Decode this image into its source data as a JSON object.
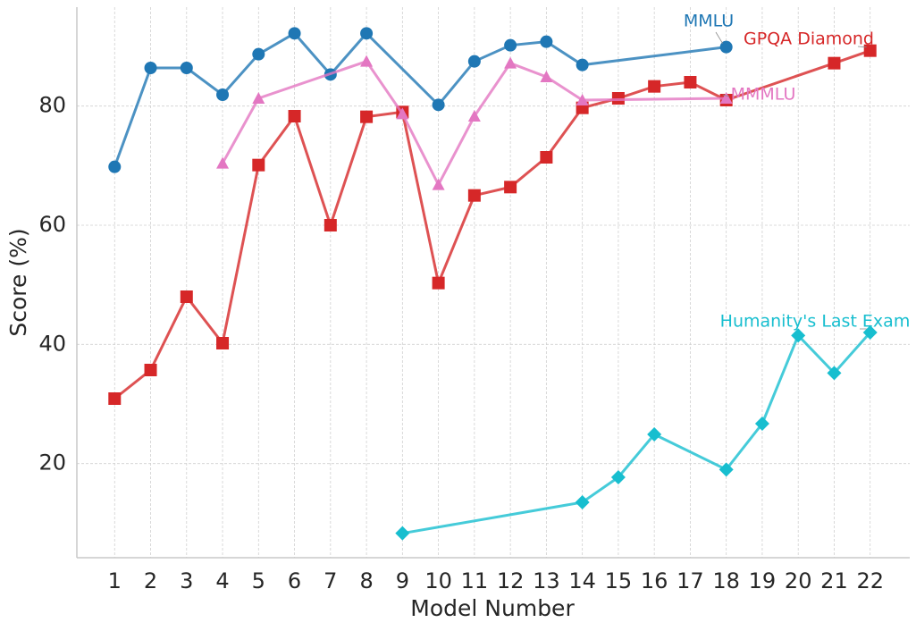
{
  "chart_data": {
    "type": "line",
    "xlabel": "Model Number",
    "ylabel": "Score (%)",
    "xlim": [
      -0.05,
      23.1
    ],
    "ylim": [
      4.2,
      96.6
    ],
    "xticks": [
      1,
      2,
      3,
      4,
      5,
      6,
      7,
      8,
      9,
      10,
      11,
      12,
      13,
      14,
      15,
      16,
      17,
      18,
      19,
      20,
      21,
      22
    ],
    "yticks": [
      20,
      40,
      60,
      80
    ],
    "grid": true,
    "series": [
      {
        "name": "MMLU",
        "color": "#1f77b4",
        "marker": "circle",
        "x": [
          1,
          2,
          3,
          4,
          5,
          6,
          7,
          8,
          10,
          11,
          12,
          13,
          14,
          18
        ],
        "values": [
          69.8,
          86.4,
          86.4,
          81.9,
          88.7,
          92.2,
          85.3,
          92.2,
          80.2,
          87.5,
          90.2,
          90.8,
          86.9,
          89.9
        ]
      },
      {
        "name": "GPQA Diamond",
        "color": "#d62728",
        "marker": "square",
        "x": [
          1,
          2,
          3,
          4,
          5,
          6,
          7,
          8,
          9,
          10,
          11,
          12,
          13,
          14,
          15,
          16,
          17,
          18,
          21,
          22
        ],
        "values": [
          30.9,
          35.7,
          48.0,
          40.2,
          70.1,
          78.3,
          60.0,
          78.2,
          79.0,
          50.3,
          65.0,
          66.4,
          71.4,
          79.7,
          81.3,
          83.3,
          84.0,
          81.0,
          87.2,
          89.3
        ]
      },
      {
        "name": "MMMLU",
        "color": "#e377c2",
        "marker": "triangle",
        "x": [
          4,
          5,
          8,
          9,
          10,
          11,
          12,
          13,
          14,
          18
        ],
        "values": [
          70.4,
          81.3,
          87.5,
          78.7,
          66.8,
          78.3,
          87.2,
          84.9,
          81.0,
          81.3
        ]
      },
      {
        "name": "Humanity's Last Exam",
        "color": "#17becf",
        "marker": "diamond",
        "x": [
          9,
          14,
          15,
          16,
          18,
          19,
          20,
          21,
          22
        ],
        "values": [
          8.3,
          13.5,
          17.7,
          24.9,
          19.0,
          26.7,
          41.5,
          35.2,
          42.0
        ]
      }
    ]
  }
}
